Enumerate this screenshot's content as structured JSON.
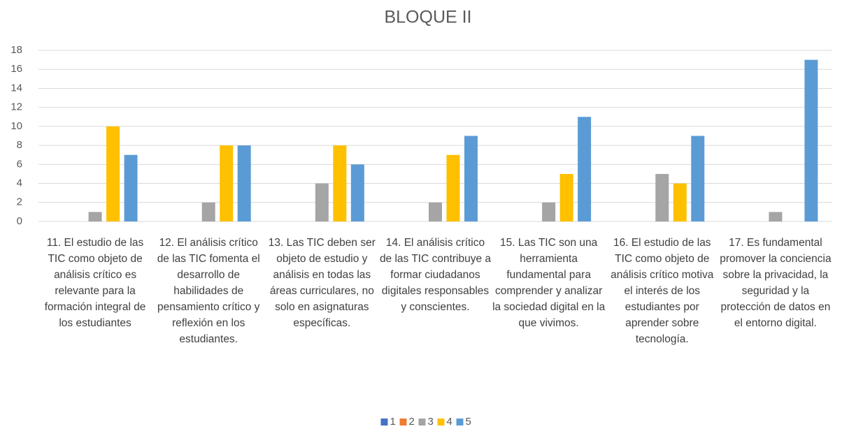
{
  "chart_data": {
    "type": "bar",
    "title": "BLOQUE II",
    "categories": [
      "11. El estudio de las TIC como objeto de análisis crítico es relevante para la formación integral de los estudiantes",
      "12. El análisis crítico de las TIC fomenta el desarrollo de habilidades de pensamiento crítico y reflexión en los estudiantes.",
      "13. Las TIC deben ser objeto de estudio y análisis en todas las áreas curriculares, no solo en asignaturas específicas.",
      "14. El análisis crítico de las TIC contribuye a formar ciudadanos digitales responsables y conscientes.",
      "15. Las TIC son una herramienta fundamental para comprender y analizar la sociedad digital en la que vivimos.",
      "16. El estudio de las TIC como objeto de análisis crítico motiva el interés de los estudiantes por aprender sobre tecnología.",
      "17. Es fundamental promover la conciencia sobre la privacidad, la seguridad y la protección de datos en el entorno digital."
    ],
    "series": [
      {
        "name": "1",
        "color": "#4472c4",
        "values": [
          0,
          0,
          0,
          0,
          0,
          0,
          0
        ]
      },
      {
        "name": "2",
        "color": "#ed7d31",
        "values": [
          0,
          0,
          0,
          0,
          0,
          0,
          0
        ]
      },
      {
        "name": "3",
        "color": "#a5a5a5",
        "values": [
          1,
          2,
          4,
          2,
          2,
          5,
          1
        ]
      },
      {
        "name": "4",
        "color": "#ffc000",
        "values": [
          10,
          8,
          8,
          7,
          5,
          4,
          0
        ]
      },
      {
        "name": "5",
        "color": "#5b9bd5",
        "values": [
          7,
          8,
          6,
          9,
          11,
          9,
          17
        ]
      }
    ],
    "ylim": [
      0,
      18
    ],
    "yticks": [
      0,
      2,
      4,
      6,
      8,
      10,
      12,
      14,
      16,
      18
    ],
    "grid": true,
    "legend": "bottom"
  }
}
